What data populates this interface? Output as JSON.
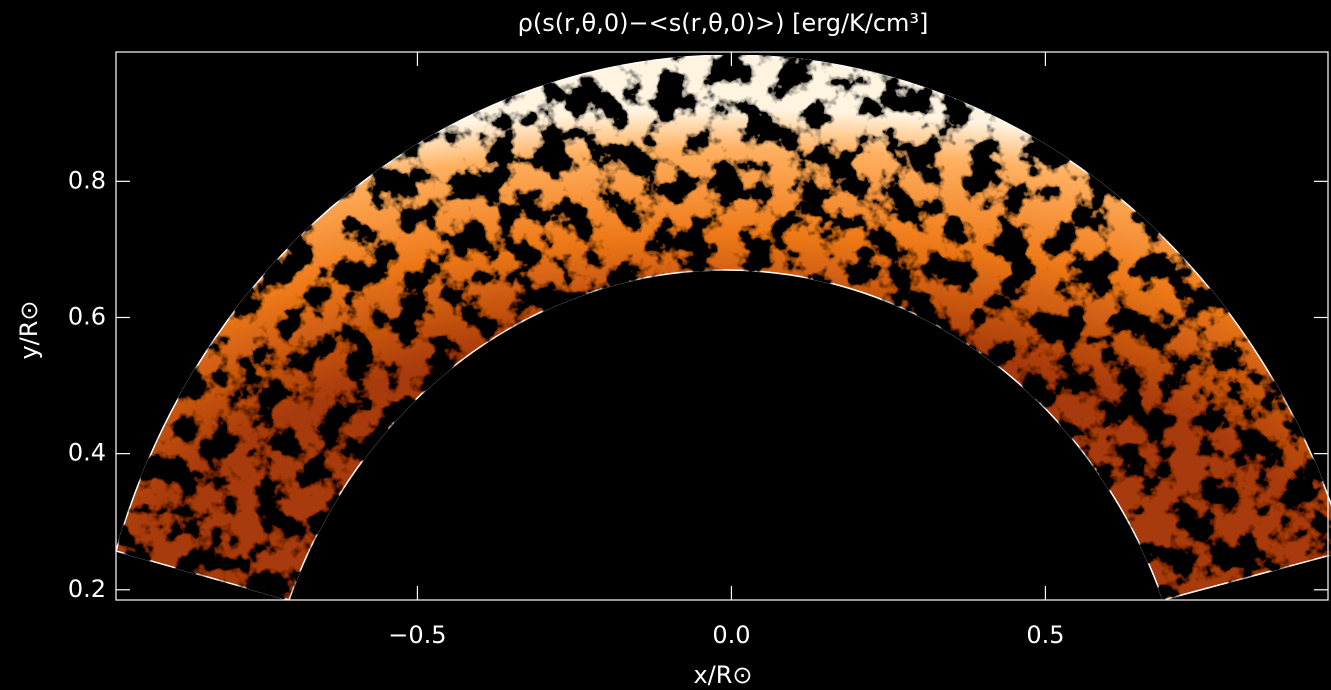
{
  "chart_data": {
    "type": "field-map",
    "title": "ρ(s(r,θ,0)−<s(r,θ,0)>) [erg/K/cm³]",
    "x_label": "x/R⊙",
    "y_label": "y/R⊙",
    "xlim": [
      -0.98,
      0.95
    ],
    "ylim": [
      0.185,
      0.99
    ],
    "xticks": [
      {
        "value": -0.5,
        "label": "−0.5"
      },
      {
        "value": 0,
        "label": "0.0"
      },
      {
        "value": 0.5,
        "label": "0.5"
      }
    ],
    "yticks": [
      0.2,
      0.4,
      0.6,
      0.8
    ]
  }
}
